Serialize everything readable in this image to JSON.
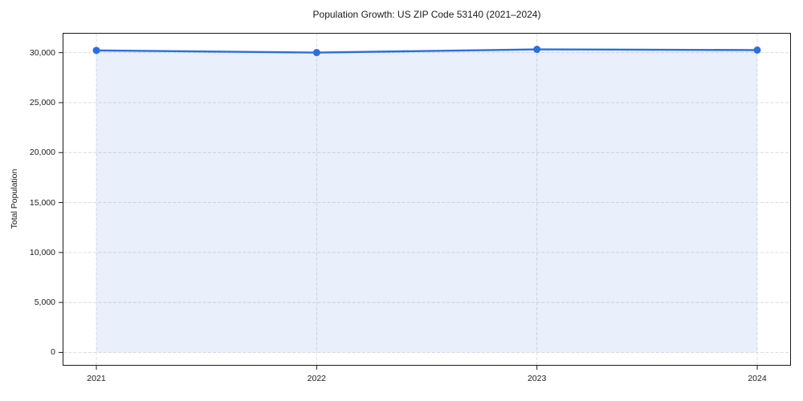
{
  "chart_data": {
    "type": "line",
    "title": "Population Growth: US ZIP Code 53140 (2021–2024)",
    "xlabel": "",
    "ylabel": "Total Population",
    "x": [
      "2021",
      "2022",
      "2023",
      "2024"
    ],
    "series": [
      {
        "name": "Total Population",
        "values": [
          30225,
          30010,
          30330,
          30260
        ]
      }
    ],
    "yticks": [
      0,
      5000,
      10000,
      15000,
      20000,
      25000,
      30000
    ],
    "ylim": [
      -1250,
      31900
    ],
    "grid": true,
    "grid_style": "dashed",
    "legend": false,
    "fill_to_zero": true,
    "colors": {
      "line": "#2b6fdf",
      "marker": "#2b6fdf",
      "fill": "rgba(43,111,223,0.10)",
      "grid": "#d9d9d9",
      "spine": "#1a1a1a",
      "text": "#1a1a1a"
    }
  }
}
